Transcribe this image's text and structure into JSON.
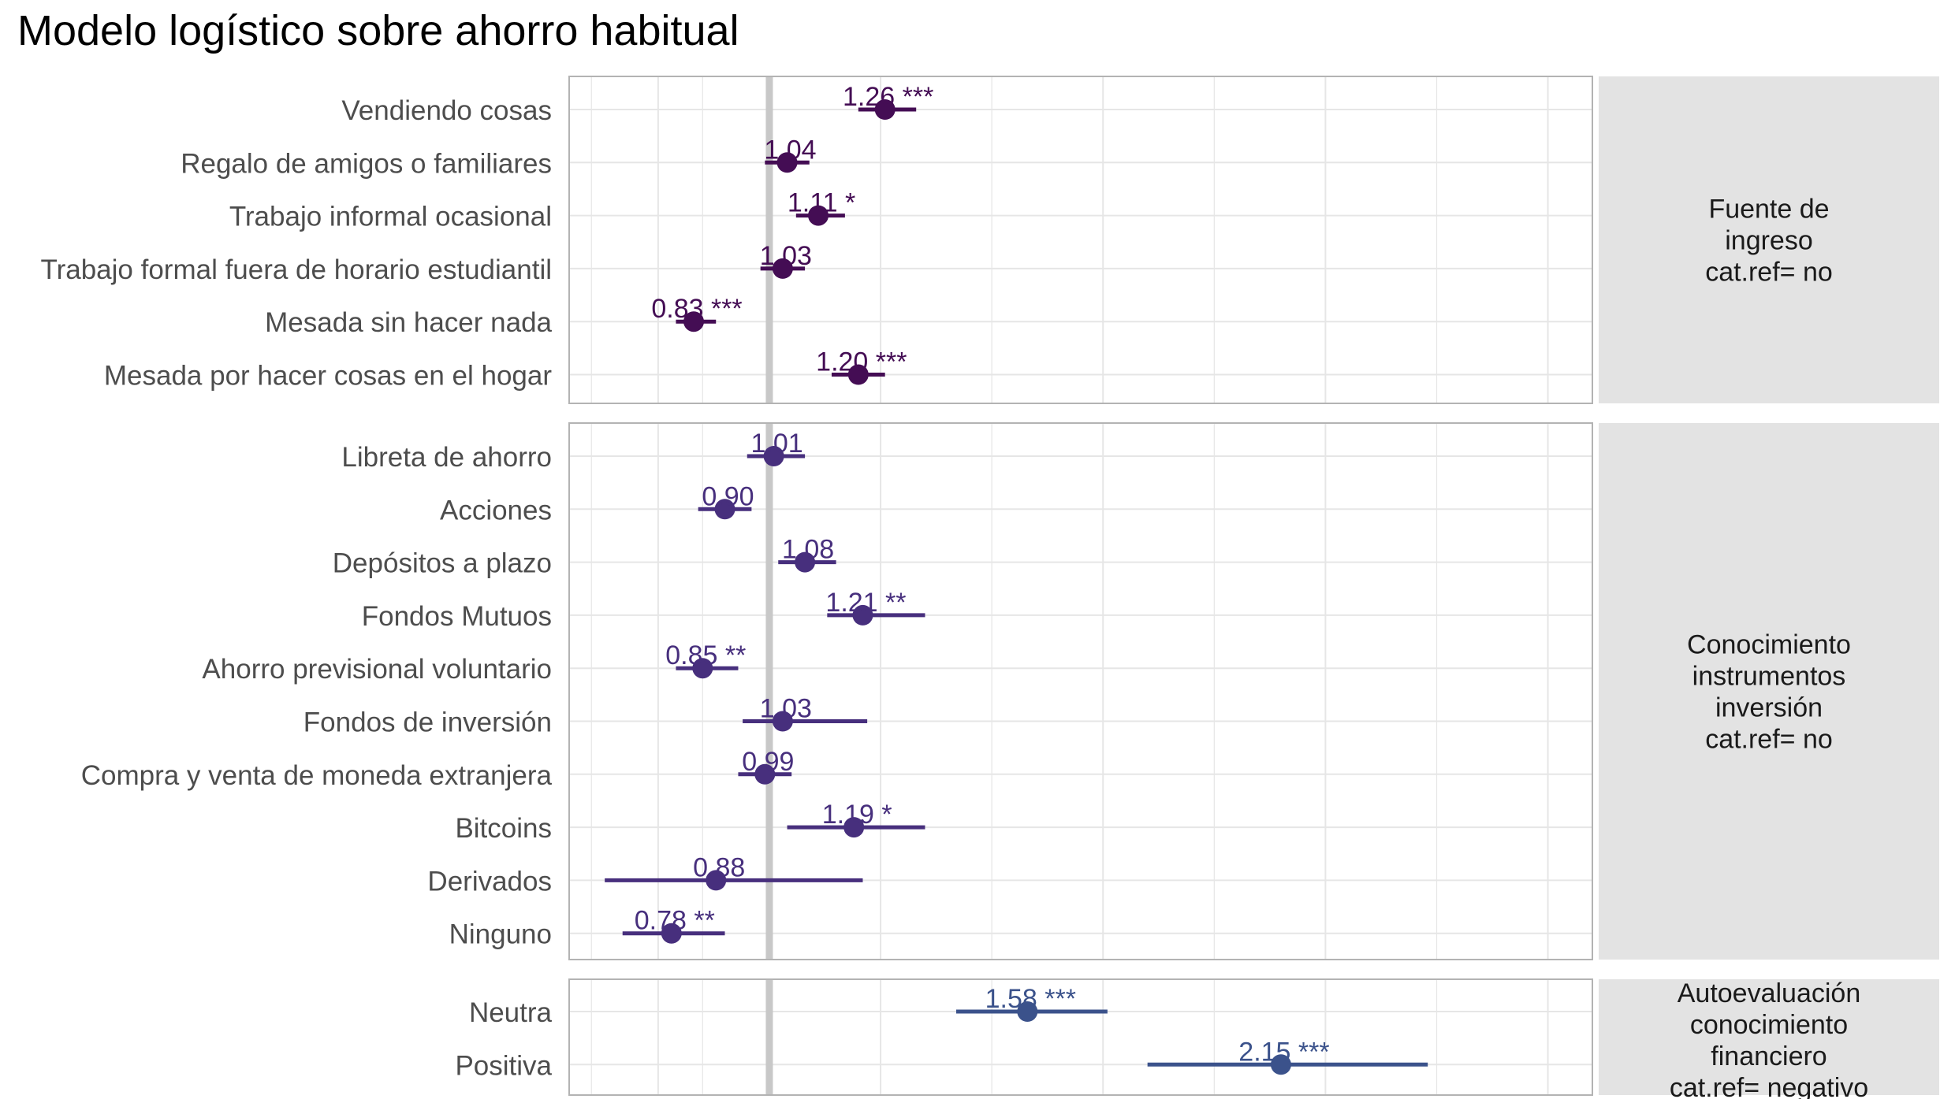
{
  "chart_data": {
    "type": "forest",
    "title": "Modelo logístico sobre ahorro habitual",
    "xlabel": "",
    "ylabel": "",
    "reference_line": 1,
    "grid": true,
    "colors": {
      "panel_strip": "#e3e3e3",
      "grid": "#e6e6e6",
      "panel_border": "#b3b3b3",
      "reference_line": "#c8c8c8",
      "tick_label": "#4d4d4d",
      "strip_text": "#1a1a1a"
    },
    "panels": [
      {
        "strip_label": [
          "Fuente de",
          "ingreso",
          "cat.ref= no"
        ],
        "color": "#440d54",
        "rows": [
          {
            "label": "Vendiendo cosas",
            "or": 1.26,
            "low": 1.2,
            "high": 1.33,
            "text": "1.26 ***"
          },
          {
            "label": "Regalo de amigos o familiares",
            "or": 1.04,
            "low": 0.99,
            "high": 1.09,
            "text": "1.04"
          },
          {
            "label": "Trabajo informal ocasional",
            "or": 1.11,
            "low": 1.06,
            "high": 1.17,
            "text": "1.11 *"
          },
          {
            "label": "Trabajo formal fuera de horario estudiantil",
            "or": 1.03,
            "low": 0.98,
            "high": 1.08,
            "text": "1.03"
          },
          {
            "label": "Mesada sin hacer nada",
            "or": 0.83,
            "low": 0.79,
            "high": 0.88,
            "text": "0.83 ***"
          },
          {
            "label": "Mesada por hacer cosas en el hogar",
            "or": 1.2,
            "low": 1.14,
            "high": 1.26,
            "text": "1.20 ***"
          }
        ]
      },
      {
        "strip_label": [
          "Conocimiento",
          "instrumentos",
          "inversión",
          "cat.ref= no"
        ],
        "color": "#472f7d",
        "rows": [
          {
            "label": "Libreta de ahorro",
            "or": 1.01,
            "low": 0.95,
            "high": 1.08,
            "text": "1.01"
          },
          {
            "label": "Acciones",
            "or": 0.9,
            "low": 0.84,
            "high": 0.96,
            "text": "0.90"
          },
          {
            "label": "Depósitos a plazo",
            "or": 1.08,
            "low": 1.02,
            "high": 1.15,
            "text": "1.08"
          },
          {
            "label": "Fondos Mutuos",
            "or": 1.21,
            "low": 1.13,
            "high": 1.35,
            "text": "1.21 **"
          },
          {
            "label": "Ahorro previsional voluntario",
            "or": 0.85,
            "low": 0.79,
            "high": 0.93,
            "text": "0.85 **"
          },
          {
            "label": "Fondos de inversión",
            "or": 1.03,
            "low": 0.94,
            "high": 1.22,
            "text": "1.03"
          },
          {
            "label": "Compra y venta de moneda extranjera",
            "or": 0.99,
            "low": 0.93,
            "high": 1.05,
            "text": "0.99"
          },
          {
            "label": "Bitcoins",
            "or": 1.19,
            "low": 1.04,
            "high": 1.35,
            "text": "1.19 *"
          },
          {
            "label": "Derivados",
            "or": 0.88,
            "low": 0.63,
            "high": 1.21,
            "text": "0.88"
          },
          {
            "label": "Ninguno",
            "or": 0.78,
            "low": 0.67,
            "high": 0.9,
            "text": "0.78 **"
          }
        ]
      },
      {
        "strip_label": [
          "Autoevaluación",
          "conocimiento",
          "financiero",
          "cat.ref= negativo"
        ],
        "color": "#3b528b",
        "rows": [
          {
            "label": "Neutra",
            "or": 1.58,
            "low": 1.42,
            "high": 1.76,
            "text": "1.58 ***"
          },
          {
            "label": "Positiva",
            "or": 2.15,
            "low": 1.85,
            "high": 2.48,
            "text": "2.15 ***"
          }
        ]
      }
    ]
  }
}
